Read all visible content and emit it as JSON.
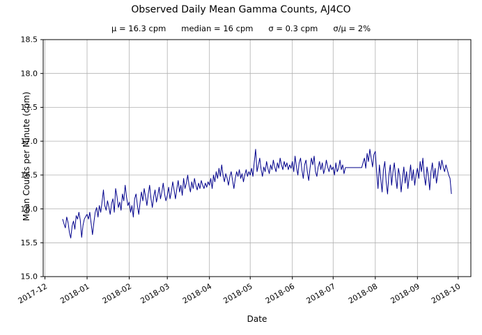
{
  "figure": {
    "title": "Observed Daily Mean Gamma Counts, AJ4CO"
  },
  "chart_data": {
    "type": "line",
    "title": "Observed Daily Mean Gamma Counts, AJ4CO",
    "subtitle": "μ = 16.3 cpm      median = 16 cpm      σ = 0.3 cpm      σ/μ = 2%",
    "stats": {
      "mu": "16.3 cpm",
      "median": "16 cpm",
      "sigma": "0.3 cpm",
      "sigma_over_mu": "2%"
    },
    "xlabel": "Date",
    "ylabel": "Mean Counts per Minute (cpm)",
    "ylim": [
      15.0,
      18.5
    ],
    "yticks": [
      {
        "value": 15.0,
        "label": "15.0"
      },
      {
        "value": 15.5,
        "label": "15.5"
      },
      {
        "value": 16.0,
        "label": "16.0"
      },
      {
        "value": 16.5,
        "label": "16.5"
      },
      {
        "value": 17.0,
        "label": "17.0"
      },
      {
        "value": 17.5,
        "label": "17.5"
      },
      {
        "value": 18.0,
        "label": "18.0"
      },
      {
        "value": 18.5,
        "label": "18.5"
      }
    ],
    "xlim_days": [
      -14.3,
      300.3
    ],
    "xticks": [
      {
        "label": "2017-12",
        "day": -13
      },
      {
        "label": "2018-01",
        "day": 18
      },
      {
        "label": "2018-02",
        "day": 49
      },
      {
        "label": "2018-03",
        "day": 77
      },
      {
        "label": "2018-04",
        "day": 108
      },
      {
        "label": "2018-05",
        "day": 138
      },
      {
        "label": "2018-06",
        "day": 169
      },
      {
        "label": "2018-07",
        "day": 199
      },
      {
        "label": "2018-08",
        "day": 230
      },
      {
        "label": "2018-09",
        "day": 261
      },
      {
        "label": "2018-10",
        "day": 291
      }
    ],
    "grid": true,
    "grid_color": "#b0b0b0",
    "line_color": "#00008b",
    "legend": "none",
    "start_date": "2017-12-14",
    "series": [
      {
        "name": "daily-mean-gamma-counts",
        "color": "#00008b",
        "values": [
          15.85,
          15.78,
          15.72,
          15.88,
          15.8,
          15.65,
          15.57,
          15.75,
          15.82,
          15.7,
          15.9,
          15.85,
          15.95,
          15.83,
          15.58,
          15.76,
          15.85,
          15.89,
          15.92,
          15.85,
          15.95,
          15.78,
          15.62,
          15.8,
          15.95,
          16.02,
          15.88,
          16.05,
          15.95,
          16.1,
          16.28,
          16.05,
          15.98,
          16.12,
          16.03,
          15.92,
          16.08,
          16.15,
          15.95,
          16.3,
          16.18,
          16.02,
          16.1,
          15.98,
          16.22,
          16.12,
          16.35,
          16.18,
          16.05,
          16.1,
          15.95,
          16.05,
          15.88,
          16.15,
          16.22,
          16.05,
          15.92,
          16.1,
          16.25,
          16.12,
          16.3,
          16.18,
          16.05,
          16.22,
          16.35,
          16.15,
          16.02,
          16.18,
          16.28,
          16.1,
          16.2,
          16.32,
          16.15,
          16.25,
          16.38,
          16.22,
          16.12,
          16.2,
          16.32,
          16.15,
          16.25,
          16.4,
          16.28,
          16.15,
          16.3,
          16.42,
          16.25,
          16.35,
          16.2,
          16.45,
          16.3,
          16.38,
          16.5,
          16.35,
          16.25,
          16.4,
          16.3,
          16.45,
          16.35,
          16.28,
          16.38,
          16.3,
          16.42,
          16.35,
          16.3,
          16.38,
          16.32,
          16.4,
          16.35,
          16.45,
          16.3,
          16.5,
          16.4,
          16.55,
          16.45,
          16.6,
          16.48,
          16.65,
          16.5,
          16.4,
          16.52,
          16.45,
          16.35,
          16.48,
          16.55,
          16.42,
          16.3,
          16.45,
          16.55,
          16.48,
          16.58,
          16.45,
          16.52,
          16.4,
          16.5,
          16.58,
          16.48,
          16.55,
          16.5,
          16.6,
          16.48,
          16.7,
          16.88,
          16.55,
          16.65,
          16.75,
          16.58,
          16.48,
          16.62,
          16.55,
          16.7,
          16.6,
          16.52,
          16.65,
          16.58,
          16.72,
          16.62,
          16.55,
          16.68,
          16.6,
          16.75,
          16.65,
          16.58,
          16.7,
          16.62,
          16.68,
          16.58,
          16.65,
          16.6,
          16.7,
          16.55,
          16.78,
          16.62,
          16.5,
          16.68,
          16.75,
          16.58,
          16.45,
          16.65,
          16.72,
          16.55,
          16.42,
          16.6,
          16.75,
          16.65,
          16.78,
          16.55,
          16.48,
          16.62,
          16.7,
          16.58,
          16.68,
          16.52,
          16.6,
          16.72,
          16.62,
          16.55,
          16.65,
          16.58,
          16.62,
          16.5,
          16.68,
          16.55,
          16.6,
          16.72,
          16.58,
          16.65,
          16.52,
          16.61,
          16.61,
          16.61,
          16.61,
          16.61,
          16.61,
          16.61,
          16.61,
          16.61,
          16.61,
          16.61,
          16.61,
          16.61,
          16.68,
          16.75,
          16.6,
          16.82,
          16.7,
          16.88,
          16.75,
          16.62,
          16.8,
          16.85,
          16.55,
          16.3,
          16.65,
          16.45,
          16.25,
          16.58,
          16.7,
          16.4,
          16.22,
          16.5,
          16.65,
          16.35,
          16.55,
          16.68,
          16.45,
          16.3,
          16.6,
          16.5,
          16.25,
          16.45,
          16.62,
          16.38,
          16.55,
          16.3,
          16.48,
          16.65,
          16.42,
          16.58,
          16.35,
          16.5,
          16.6,
          16.45,
          16.7,
          16.55,
          16.75,
          16.48,
          16.35,
          16.62,
          16.5,
          16.28,
          16.55,
          16.68,
          16.45,
          16.6,
          16.38,
          16.52,
          16.7,
          16.58,
          16.72,
          16.62,
          16.55,
          16.65,
          16.58,
          16.5,
          16.45,
          16.22
        ]
      }
    ]
  }
}
